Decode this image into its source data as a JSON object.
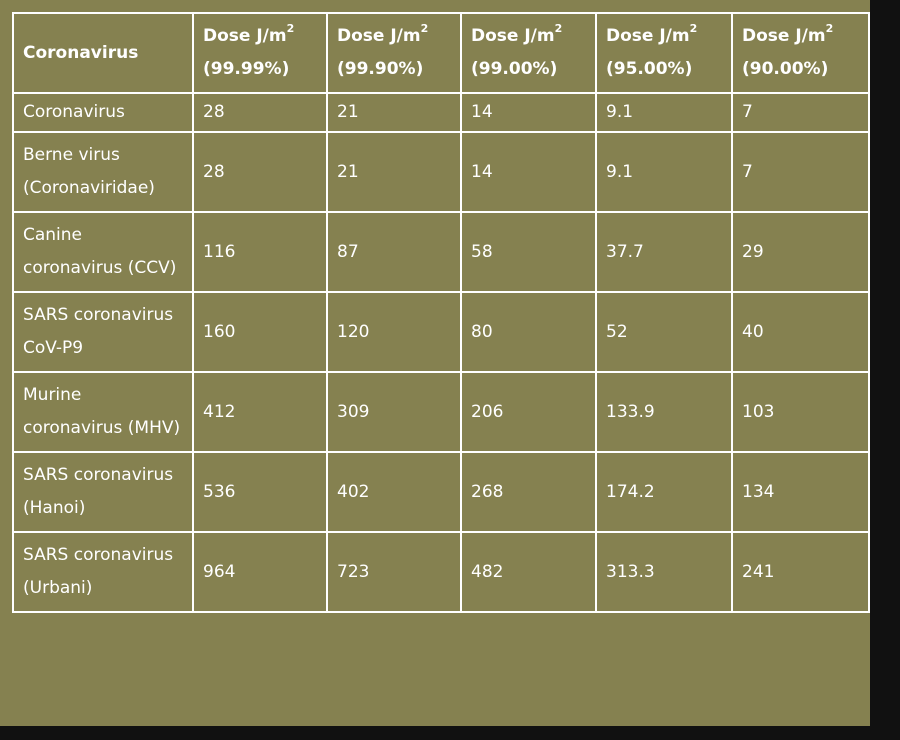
{
  "table": {
    "headers": [
      {
        "label": "Coronavirus"
      },
      {
        "label": "Dose J/m",
        "sup": "2",
        "sub_label": "(99.99%)"
      },
      {
        "label": "Dose J/m",
        "sup": "2",
        "sub_label": "(99.90%)"
      },
      {
        "label": "Dose J/m",
        "sup": "2",
        "sub_label": "(99.00%)"
      },
      {
        "label": "Dose J/m",
        "sup": "2",
        "sub_label": "(95.00%)"
      },
      {
        "label": "Dose J/m",
        "sup": "2",
        "sub_label": "(90.00%)"
      }
    ],
    "rows": [
      {
        "cells": [
          "Coronavirus",
          "28",
          "21",
          "14",
          "9.1",
          "7"
        ]
      },
      {
        "cells": [
          "Berne virus (Coronaviridae)",
          "28",
          "21",
          "14",
          "9.1",
          "7"
        ]
      },
      {
        "cells": [
          "Canine coronavirus (CCV)",
          "116",
          "87",
          "58",
          "37.7",
          "29"
        ]
      },
      {
        "cells": [
          "SARS coronavirus CoV-P9",
          "160",
          "120",
          "80",
          "52",
          "40"
        ]
      },
      {
        "cells": [
          "Murine coronavirus (MHV)",
          "412",
          "309",
          "206",
          "133.9",
          "103"
        ]
      },
      {
        "cells": [
          "SARS coronavirus (Hanoi)",
          "536",
          "402",
          "268",
          "174.2",
          "134"
        ]
      },
      {
        "cells": [
          "SARS coronavirus (Urbani)",
          "964",
          "723",
          "482",
          "313.3",
          "241"
        ]
      }
    ]
  },
  "colors": {
    "page_background": "#111111",
    "panel_background": "#858150",
    "border": "#ffffff",
    "text": "#ffffff"
  }
}
